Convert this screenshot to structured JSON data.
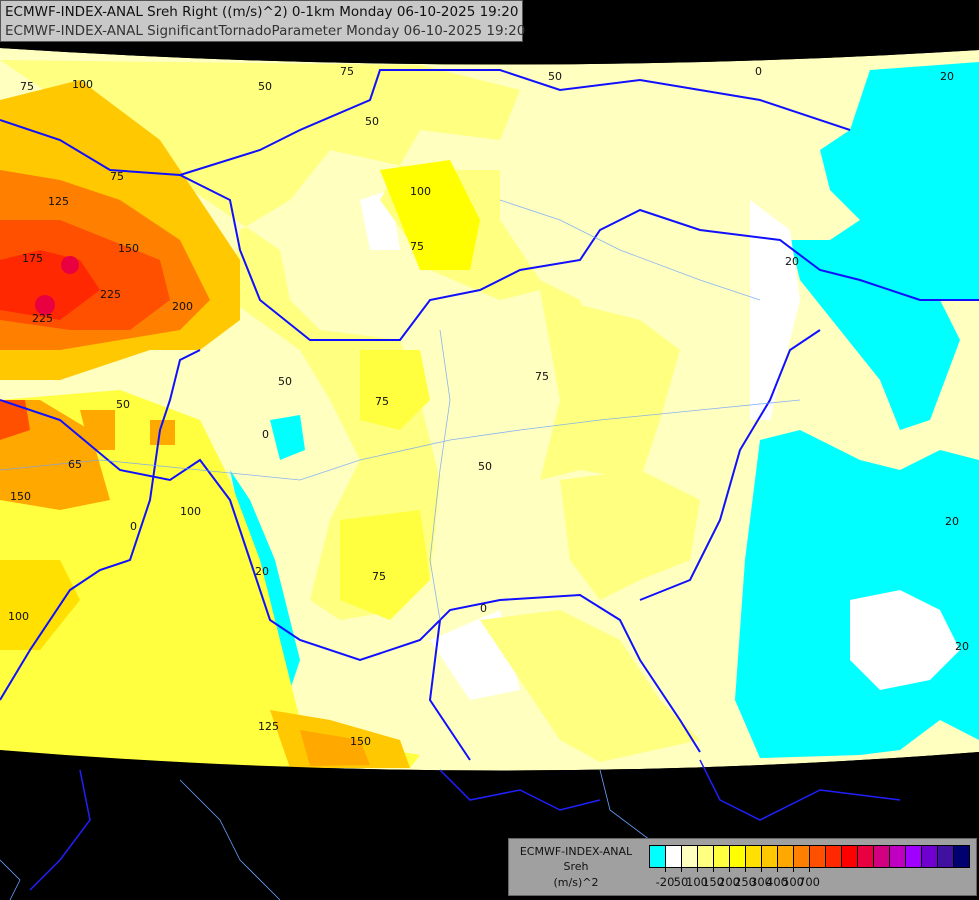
{
  "header": {
    "line1": "ECMWF-INDEX-ANAL Sreh Right ((m/s)^2) 0-1km Monday 06-10-2025 19:20",
    "line2": "ECMWF-INDEX-ANAL SignificantTornadoParameter Monday 06-10-2025 19:20"
  },
  "legend": {
    "model": "ECMWF-INDEX-ANAL",
    "parameter": "Sreh",
    "unit": "(m/s)^2",
    "colors": [
      "#00ffff",
      "#ffffff",
      "#ffffc0",
      "#ffff80",
      "#ffff40",
      "#ffff00",
      "#ffe000",
      "#ffc800",
      "#ffa800",
      "#ff8000",
      "#ff5000",
      "#ff2800",
      "#ff0000",
      "#e80040",
      "#d00080",
      "#c000c0",
      "#a000ff",
      "#7000d0",
      "#4010a0",
      "#000070"
    ],
    "ticks": [
      "-20",
      "50",
      "100",
      "150",
      "200",
      "250",
      "300",
      "400",
      "500",
      "700"
    ]
  },
  "contour_labels": [
    "100",
    "75",
    "50",
    "75",
    "125",
    "175",
    "150",
    "225",
    "200",
    "225",
    "50",
    "150",
    "100",
    "65",
    "75",
    "50",
    "50",
    "100",
    "75",
    "75",
    "50",
    "75",
    "20",
    "20",
    "20",
    "20",
    "0",
    "125",
    "150",
    "0",
    "0",
    "75",
    "100",
    "50",
    "0",
    "20"
  ]
}
